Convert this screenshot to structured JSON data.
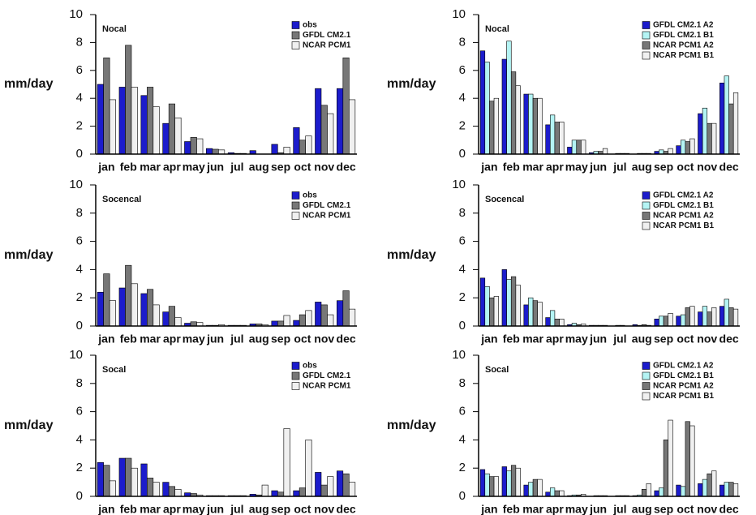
{
  "chart_data": [
    {
      "type": "bar",
      "title": "Nocal",
      "y_label": "mm/day",
      "ylim": [
        0,
        10
      ],
      "yticks": [
        0,
        2,
        4,
        6,
        8,
        10
      ],
      "categories": [
        "jan",
        "feb",
        "mar",
        "apr",
        "may",
        "jun",
        "jul",
        "aug",
        "sep",
        "oct",
        "nov",
        "dec"
      ],
      "series": [
        {
          "name": "obs",
          "color": "#1c1ccc",
          "values": [
            5.0,
            4.8,
            4.2,
            2.2,
            0.9,
            0.4,
            0.1,
            0.25,
            0.7,
            1.9,
            4.7,
            4.7
          ]
        },
        {
          "name": "GFDL CM2.1",
          "color": "#777777",
          "values": [
            6.9,
            7.8,
            4.8,
            3.6,
            1.2,
            0.35,
            0.05,
            0,
            0.1,
            1.0,
            3.5,
            6.9
          ]
        },
        {
          "name": "NCAR PCM1",
          "color": "#f0f0f0",
          "values": [
            3.9,
            4.8,
            3.4,
            2.6,
            1.1,
            0.3,
            0.05,
            0,
            0.5,
            1.3,
            2.9,
            3.9
          ]
        }
      ]
    },
    {
      "type": "bar",
      "title": "Nocal",
      "y_label": "mm/day",
      "ylim": [
        0,
        10
      ],
      "yticks": [
        0,
        2,
        4,
        6,
        8,
        10
      ],
      "categories": [
        "jan",
        "feb",
        "mar",
        "apr",
        "may",
        "jun",
        "jul",
        "aug",
        "sep",
        "oct",
        "nov",
        "dec"
      ],
      "series": [
        {
          "name": "GFDL CM2.1 A2",
          "color": "#1c1ccc",
          "values": [
            7.4,
            6.8,
            4.3,
            2.1,
            0.5,
            0.1,
            0,
            0,
            0.2,
            0.6,
            2.9,
            5.1
          ]
        },
        {
          "name": "GFDL CM2.1 B1",
          "color": "#b4f4f4",
          "values": [
            6.6,
            8.1,
            4.3,
            2.8,
            1.0,
            0.2,
            0.05,
            0.05,
            0.3,
            1.0,
            3.3,
            5.6
          ]
        },
        {
          "name": "NCAR PCM1 A2",
          "color": "#777777",
          "values": [
            3.8,
            5.9,
            4.0,
            2.3,
            1.0,
            0.2,
            0.05,
            0.05,
            0.2,
            0.9,
            2.2,
            3.6
          ]
        },
        {
          "name": "NCAR PCM1 B1",
          "color": "#f0f0f0",
          "values": [
            4.0,
            4.9,
            4.0,
            2.3,
            1.0,
            0.4,
            0.05,
            0.05,
            0.4,
            1.1,
            2.2,
            4.4
          ]
        }
      ]
    },
    {
      "type": "bar",
      "title": "Socencal",
      "y_label": "mm/day",
      "ylim": [
        0,
        10
      ],
      "yticks": [
        0,
        2,
        4,
        6,
        8,
        10
      ],
      "categories": [
        "jan",
        "feb",
        "mar",
        "apr",
        "may",
        "jun",
        "jul",
        "aug",
        "sep",
        "oct",
        "nov",
        "dec"
      ],
      "series": [
        {
          "name": "obs",
          "color": "#1c1ccc",
          "values": [
            2.4,
            2.7,
            2.3,
            1.0,
            0.2,
            0.05,
            0.05,
            0.15,
            0.35,
            0.4,
            1.7,
            1.8
          ]
        },
        {
          "name": "GFDL CM2.1",
          "color": "#777777",
          "values": [
            3.7,
            4.3,
            2.6,
            1.4,
            0.3,
            0.05,
            0.05,
            0.15,
            0.35,
            0.8,
            1.5,
            2.5
          ]
        },
        {
          "name": "NCAR PCM1",
          "color": "#f0f0f0",
          "values": [
            1.8,
            3.0,
            1.5,
            0.6,
            0.25,
            0.1,
            0.05,
            0.1,
            0.75,
            1.1,
            0.8,
            1.2
          ]
        }
      ]
    },
    {
      "type": "bar",
      "title": "Socencal",
      "y_label": "mm/day",
      "ylim": [
        0,
        10
      ],
      "yticks": [
        0,
        2,
        4,
        6,
        8,
        10
      ],
      "categories": [
        "jan",
        "feb",
        "mar",
        "apr",
        "may",
        "jun",
        "jul",
        "aug",
        "sep",
        "oct",
        "nov",
        "dec"
      ],
      "series": [
        {
          "name": "GFDL CM2.1 A2",
          "color": "#1c1ccc",
          "values": [
            3.4,
            4.0,
            1.5,
            0.6,
            0.1,
            0.05,
            0,
            0.1,
            0.5,
            0.7,
            1.0,
            1.4
          ]
        },
        {
          "name": "GFDL CM2.1 B1",
          "color": "#b4f4f4",
          "values": [
            2.8,
            3.3,
            2.0,
            1.1,
            0.2,
            0.05,
            0.05,
            0.05,
            0.7,
            0.8,
            1.4,
            1.9
          ]
        },
        {
          "name": "NCAR PCM1 A2",
          "color": "#777777",
          "values": [
            2.0,
            3.5,
            1.8,
            0.5,
            0.1,
            0.05,
            0.05,
            0.1,
            0.7,
            1.3,
            1.0,
            1.3
          ]
        },
        {
          "name": "NCAR PCM1 B1",
          "color": "#f0f0f0",
          "values": [
            2.1,
            2.9,
            1.7,
            0.5,
            0.15,
            0.05,
            0,
            0.05,
            0.9,
            1.4,
            1.3,
            1.2
          ]
        }
      ]
    },
    {
      "type": "bar",
      "title": "Socal",
      "y_label": "mm/day",
      "ylim": [
        0,
        10
      ],
      "yticks": [
        0,
        2,
        4,
        6,
        8,
        10
      ],
      "categories": [
        "jan",
        "feb",
        "mar",
        "apr",
        "may",
        "jun",
        "jul",
        "aug",
        "sep",
        "oct",
        "nov",
        "dec"
      ],
      "series": [
        {
          "name": "obs",
          "color": "#1c1ccc",
          "values": [
            2.4,
            2.7,
            2.3,
            1.0,
            0.25,
            0.05,
            0.05,
            0.15,
            0.4,
            0.4,
            1.7,
            1.8
          ]
        },
        {
          "name": "GFDL CM2.1",
          "color": "#777777",
          "values": [
            2.2,
            2.7,
            1.3,
            0.7,
            0.2,
            0.05,
            0.05,
            0.1,
            0.3,
            0.6,
            0.8,
            1.6
          ]
        },
        {
          "name": "NCAR PCM1",
          "color": "#f0f0f0",
          "values": [
            1.1,
            2.0,
            1.0,
            0.5,
            0.1,
            0.05,
            0.05,
            0.8,
            4.8,
            4.0,
            1.4,
            1.0
          ]
        }
      ]
    },
    {
      "type": "bar",
      "title": "Socal",
      "y_label": "mm/day",
      "ylim": [
        0,
        10
      ],
      "yticks": [
        0,
        2,
        4,
        6,
        8,
        10
      ],
      "categories": [
        "jan",
        "feb",
        "mar",
        "apr",
        "may",
        "jun",
        "jul",
        "aug",
        "sep",
        "oct",
        "nov",
        "dec"
      ],
      "series": [
        {
          "name": "GFDL CM2.1 A2",
          "color": "#1c1ccc",
          "values": [
            1.9,
            2.1,
            0.8,
            0.3,
            0.05,
            0,
            0,
            0.05,
            0.4,
            0.8,
            0.9,
            0.8
          ]
        },
        {
          "name": "GFDL CM2.1 B1",
          "color": "#b4f4f4",
          "values": [
            1.6,
            1.8,
            1.0,
            0.6,
            0.1,
            0.05,
            0.05,
            0.1,
            0.6,
            0.7,
            1.2,
            1.0
          ]
        },
        {
          "name": "NCAR PCM1 A2",
          "color": "#777777",
          "values": [
            1.4,
            2.2,
            1.2,
            0.4,
            0.1,
            0.05,
            0.05,
            0.5,
            4.0,
            5.3,
            1.6,
            1.0
          ]
        },
        {
          "name": "NCAR PCM1 B1",
          "color": "#f0f0f0",
          "values": [
            1.4,
            2.0,
            1.2,
            0.4,
            0.15,
            0.05,
            0.05,
            0.9,
            5.4,
            5.0,
            1.8,
            0.9
          ]
        }
      ]
    }
  ]
}
